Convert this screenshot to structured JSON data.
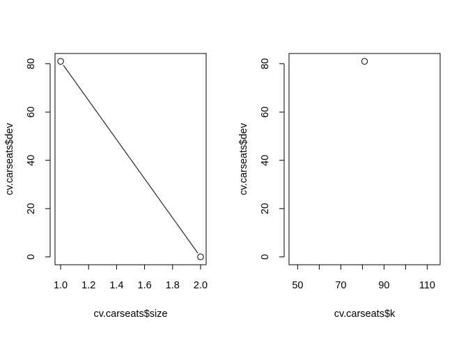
{
  "chart_data": [
    {
      "type": "line",
      "xlabel": "cv.carseats$size",
      "ylabel": "cv.carseats$dev",
      "x_ticks": [
        "1.0",
        "1.2",
        "1.4",
        "1.6",
        "1.8",
        "2.0"
      ],
      "y_ticks": [
        "0",
        "20",
        "40",
        "60",
        "80"
      ],
      "xlim": [
        0.96,
        2.04
      ],
      "ylim": [
        -3.24,
        84.24
      ],
      "series": [
        {
          "x": [
            1,
            2
          ],
          "y": [
            81,
            0
          ],
          "markers": "open-circle",
          "line": true
        }
      ],
      "grid": false
    },
    {
      "type": "scatter",
      "xlabel": "cv.carseats$k",
      "ylabel": "cv.carseats$dev",
      "x_ticks": [
        "50",
        "70",
        "90",
        "110"
      ],
      "x_minor_ticks": [
        60,
        80,
        100
      ],
      "y_ticks": [
        "0",
        "20",
        "40",
        "60",
        "80"
      ],
      "xlim": [
        46,
        116
      ],
      "ylim": [
        -3.24,
        84.24
      ],
      "series": [
        {
          "x": [
            81
          ],
          "y": [
            81
          ],
          "markers": "open-circle",
          "line": false
        }
      ],
      "grid": false
    }
  ],
  "colors": {
    "ink": "#000000",
    "background": "#ffffff"
  }
}
